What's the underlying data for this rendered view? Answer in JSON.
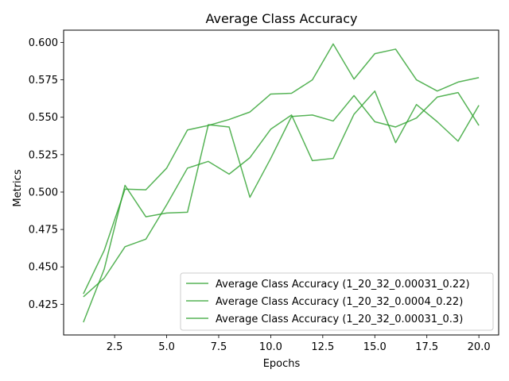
{
  "chart_data": {
    "type": "line",
    "title": "Average Class Accuracy",
    "xlabel": "Epochs",
    "ylabel": "Metrics",
    "xlim": [
      0.05,
      20.95
    ],
    "ylim": [
      0.4045,
      0.6082
    ],
    "xticks": [
      2.5,
      5.0,
      7.5,
      10.0,
      12.5,
      15.0,
      17.5,
      20.0
    ],
    "xtick_labels": [
      "2.5",
      "5.0",
      "7.5",
      "10.0",
      "12.5",
      "15.0",
      "17.5",
      "20.0"
    ],
    "yticks": [
      0.425,
      0.45,
      0.475,
      0.5,
      0.525,
      0.55,
      0.575,
      0.6
    ],
    "ytick_labels": [
      "0.425",
      "0.450",
      "0.475",
      "0.500",
      "0.525",
      "0.550",
      "0.575",
      "0.600"
    ],
    "grid": false,
    "legend_position": "lower-right",
    "line_color": "#2ca02c",
    "x": [
      1,
      2,
      3,
      4,
      5,
      6,
      7,
      8,
      9,
      10,
      11,
      12,
      13,
      14,
      15,
      16,
      17,
      18,
      19,
      20
    ],
    "series": [
      {
        "name": "Average Class Accuracy (1_20_32_0.00031_0.22)",
        "values": [
          0.432,
          0.461,
          0.502,
          0.5015,
          0.516,
          0.5415,
          0.5445,
          0.5485,
          0.5535,
          0.5655,
          0.566,
          0.575,
          0.599,
          0.5755,
          0.5925,
          0.5955,
          0.575,
          0.5675,
          0.5735,
          0.5765
        ]
      },
      {
        "name": "Average Class Accuracy (1_20_32_0.0004_0.22)",
        "values": [
          0.413,
          0.4485,
          0.5045,
          0.4835,
          0.486,
          0.4865,
          0.545,
          0.5435,
          0.4965,
          0.5225,
          0.5505,
          0.5515,
          0.5475,
          0.5645,
          0.547,
          0.5435,
          0.5495,
          0.5635,
          0.5665,
          0.5445
        ]
      },
      {
        "name": "Average Class Accuracy (1_20_32_0.00031_0.3)",
        "values": [
          0.43,
          0.4425,
          0.4635,
          0.4685,
          0.4915,
          0.516,
          0.5205,
          0.512,
          0.523,
          0.542,
          0.5515,
          0.521,
          0.5225,
          0.552,
          0.5675,
          0.533,
          0.5585,
          0.547,
          0.534,
          0.558
        ]
      }
    ]
  }
}
